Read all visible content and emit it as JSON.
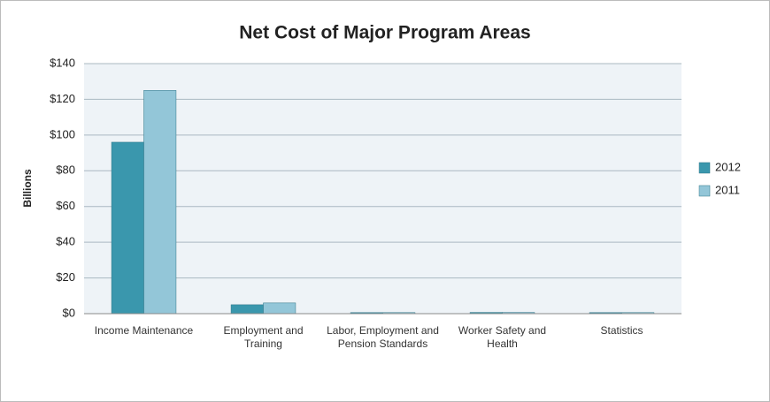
{
  "chart_data": {
    "type": "bar",
    "title": "Net Cost of Major Program Areas",
    "y_label": "Billions",
    "categories": [
      "Income Maintenance",
      "Employment and Training",
      "Labor, Employment and Pension Standards",
      "Worker Safety and Health",
      "Statistics"
    ],
    "series": [
      {
        "name": "2012",
        "color": "#3a97ad",
        "values": [
          96,
          5,
          0.6,
          0.7,
          0.6
        ]
      },
      {
        "name": "2011",
        "color": "#93c6d8",
        "values": [
          125,
          6,
          0.6,
          0.7,
          0.6
        ]
      }
    ],
    "ylim": [
      0,
      140
    ],
    "yticks": [
      {
        "value": 0,
        "label": "$0"
      },
      {
        "value": 20,
        "label": "$20"
      },
      {
        "value": 40,
        "label": "$40"
      },
      {
        "value": 60,
        "label": "$60"
      },
      {
        "value": 80,
        "label": "$80"
      },
      {
        "value": 100,
        "label": "$100"
      },
      {
        "value": 120,
        "label": "$120"
      },
      {
        "value": 140,
        "label": "$140"
      }
    ],
    "grid": true,
    "legend": "right"
  }
}
